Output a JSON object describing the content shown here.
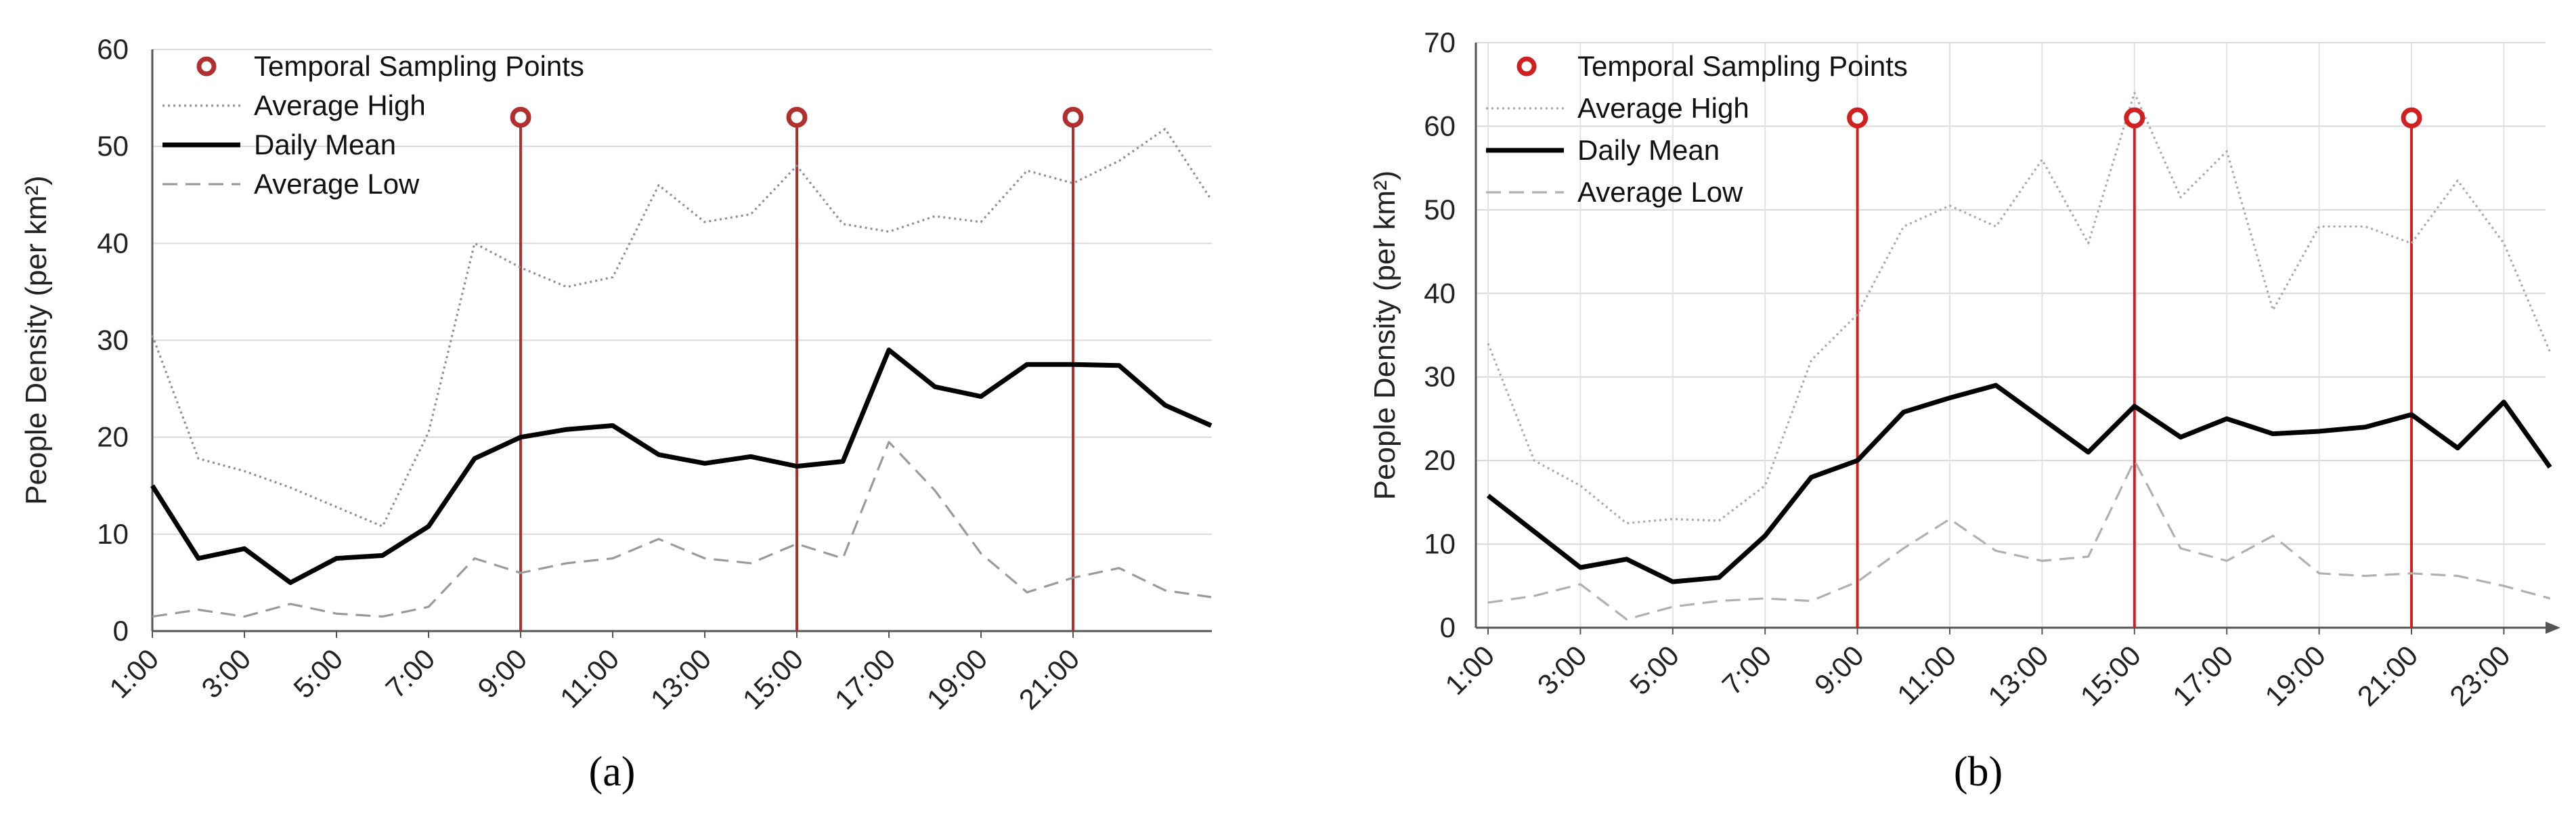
{
  "figure": {
    "panels": [
      "(a)",
      "(b)"
    ]
  },
  "chart_data": [
    {
      "type": "line",
      "panel_label": "(a)",
      "ylabel": "People Density (per km²)",
      "xlabel": "",
      "ylim": [
        0,
        60
      ],
      "y_ticks": [
        "0",
        "10",
        "20",
        "30",
        "40",
        "50",
        "60"
      ],
      "y_tick_values": [
        0,
        10,
        20,
        30,
        40,
        50,
        60
      ],
      "grid": "horizontal",
      "x_count": 24,
      "x_tick_labels": [
        "1:00",
        "3:00",
        "5:00",
        "7:00",
        "9:00",
        "11:00",
        "13:00",
        "15:00",
        "17:00",
        "19:00",
        "21:00"
      ],
      "x_tick_indices": [
        0,
        2,
        4,
        6,
        8,
        10,
        12,
        14,
        16,
        18,
        20
      ],
      "series": [
        {
          "name": "Average High",
          "style": "dotted",
          "color": "#8f8f8f",
          "values": [
            30.5,
            17.8,
            16.5,
            14.8,
            12.8,
            10.8,
            20.5,
            40,
            37.5,
            35.5,
            36.5,
            46,
            42.2,
            43,
            48,
            42,
            41.2,
            42.8,
            42.2,
            47.5,
            46.2,
            48.5,
            51.8,
            44.5
          ]
        },
        {
          "name": "Daily Mean",
          "style": "solid",
          "color": "#000000",
          "values": [
            15,
            7.5,
            8.5,
            5,
            7.5,
            7.8,
            10.8,
            17.8,
            20,
            20.8,
            21.2,
            18.2,
            17.3,
            18,
            17,
            17.5,
            29,
            25.2,
            24.2,
            27.5,
            27.5,
            27.4,
            23.3,
            21.2
          ]
        },
        {
          "name": "Average Low",
          "style": "dashed",
          "color": "#9a9a9a",
          "values": [
            1.5,
            2.2,
            1.5,
            2.8,
            1.8,
            1.5,
            2.5,
            7.5,
            6,
            7,
            7.5,
            9.5,
            7.5,
            7,
            9,
            7.5,
            19.5,
            14.5,
            8,
            4,
            5.5,
            6.5,
            4.2,
            3.5
          ]
        }
      ],
      "sampling_points": {
        "name": "Temporal Sampling Points",
        "color": "#b03030",
        "x_indices": [
          8,
          14,
          20
        ],
        "y_value": 53
      },
      "legend_position": "top-left"
    },
    {
      "type": "line",
      "panel_label": "(b)",
      "ylabel": "People Density (per km²)",
      "xlabel": "",
      "ylim": [
        0,
        70
      ],
      "y_ticks": [
        "0",
        "10",
        "20",
        "30",
        "40",
        "50",
        "60",
        "70"
      ],
      "y_tick_values": [
        0,
        10,
        20,
        30,
        40,
        50,
        60,
        70
      ],
      "grid": "both",
      "x_count": 24,
      "x_tick_labels": [
        "1:00",
        "3:00",
        "5:00",
        "7:00",
        "9:00",
        "11:00",
        "13:00",
        "15:00",
        "17:00",
        "19:00",
        "21:00",
        "23:00"
      ],
      "x_tick_indices": [
        0,
        2,
        4,
        6,
        8,
        10,
        12,
        14,
        16,
        18,
        20,
        22
      ],
      "series": [
        {
          "name": "Average High",
          "style": "dotted",
          "color": "#a9a9a9",
          "values": [
            34,
            20,
            17,
            12.5,
            13,
            12.8,
            17,
            32,
            37.5,
            48,
            50.5,
            48,
            56,
            46,
            64,
            51.5,
            57,
            38,
            48,
            48,
            46,
            53.5,
            46,
            33
          ]
        },
        {
          "name": "Daily Mean",
          "style": "solid",
          "color": "#000000",
          "values": [
            15.8,
            11.5,
            7.2,
            8.2,
            5.5,
            6,
            11,
            18,
            20,
            25.8,
            27.5,
            29,
            25,
            21,
            26.5,
            22.8,
            25,
            23.2,
            23.5,
            24,
            25.5,
            21.5,
            27,
            19.2
          ]
        },
        {
          "name": "Average Low",
          "style": "dashed",
          "color": "#b0b0b0",
          "values": [
            3,
            3.8,
            5.2,
            1,
            2.5,
            3.2,
            3.5,
            3.2,
            5.5,
            9.5,
            13,
            9.2,
            8,
            8.5,
            20,
            9.5,
            8,
            11,
            6.5,
            6.2,
            6.5,
            6.2,
            5,
            3.5
          ]
        }
      ],
      "sampling_points": {
        "name": "Temporal Sampling Points",
        "color": "#d02020",
        "x_indices": [
          8,
          14,
          20
        ],
        "y_value": 61
      },
      "legend_position": "top-left"
    }
  ]
}
